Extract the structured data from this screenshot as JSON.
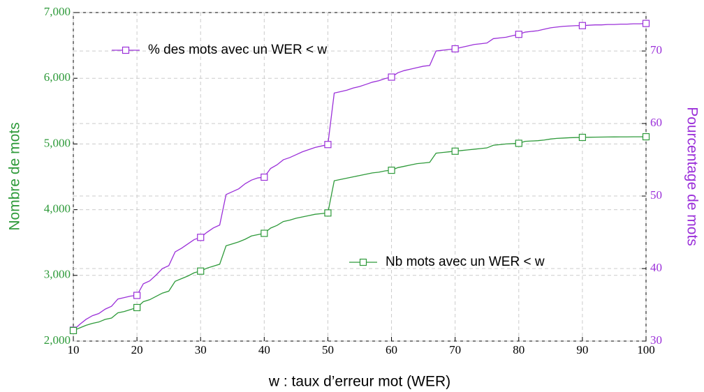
{
  "chart_data": {
    "type": "line",
    "xlabel": "w : taux d’erreur mot (WER)",
    "ylabel": "Nombre de mots",
    "y2label": "Pourcentage de mots",
    "x": [
      10,
      11,
      12,
      13,
      14,
      15,
      16,
      17,
      18,
      19,
      20,
      21,
      22,
      23,
      24,
      25,
      26,
      27,
      28,
      29,
      30,
      31,
      32,
      33,
      34,
      35,
      36,
      37,
      38,
      39,
      40,
      41,
      42,
      43,
      44,
      45,
      46,
      47,
      48,
      49,
      50,
      51,
      52,
      53,
      54,
      55,
      56,
      57,
      58,
      59,
      60,
      61,
      62,
      63,
      64,
      65,
      66,
      67,
      68,
      69,
      70,
      71,
      72,
      73,
      74,
      75,
      76,
      77,
      78,
      79,
      80,
      81,
      82,
      83,
      84,
      85,
      86,
      87,
      88,
      89,
      90,
      91,
      92,
      93,
      94,
      95,
      96,
      97,
      98,
      99,
      100
    ],
    "series": [
      {
        "name": "% des mots avec un WER < w",
        "color": "#9b30d9",
        "axis": "y2",
        "values": [
          31.5,
          32.3,
          33.0,
          33.5,
          33.8,
          34.4,
          34.8,
          35.8,
          36.0,
          36.2,
          36.3,
          37.9,
          38.3,
          39.1,
          40.0,
          40.4,
          42.3,
          42.8,
          43.4,
          44.0,
          44.3,
          45.0,
          45.6,
          46.0,
          50.2,
          50.6,
          51.0,
          51.7,
          52.2,
          52.5,
          52.6,
          53.8,
          54.3,
          55.0,
          55.3,
          55.7,
          56.1,
          56.4,
          56.7,
          56.9,
          57.1,
          64.2,
          64.4,
          64.6,
          64.9,
          65.1,
          65.4,
          65.7,
          65.9,
          66.2,
          66.4,
          67.0,
          67.3,
          67.5,
          67.7,
          67.9,
          68.0,
          70.0,
          70.1,
          70.2,
          70.3,
          70.5,
          70.7,
          70.9,
          71.0,
          71.1,
          71.7,
          71.8,
          71.9,
          72.1,
          72.3,
          72.6,
          72.7,
          72.8,
          73.0,
          73.2,
          73.3,
          73.4,
          73.45,
          73.5,
          73.5,
          73.55,
          73.6,
          73.6,
          73.65,
          73.65,
          73.7,
          73.7,
          73.75,
          73.75,
          73.8
        ]
      },
      {
        "name": "Nb mots avec un WER < w",
        "color": "#2e9a3a",
        "values": [
          2160,
          2200,
          2240,
          2270,
          2290,
          2330,
          2350,
          2430,
          2450,
          2480,
          2510,
          2600,
          2630,
          2680,
          2730,
          2760,
          2910,
          2950,
          2990,
          3040,
          3065,
          3110,
          3140,
          3170,
          3450,
          3480,
          3510,
          3550,
          3600,
          3620,
          3640,
          3720,
          3760,
          3820,
          3840,
          3870,
          3890,
          3910,
          3930,
          3940,
          3950,
          4440,
          4460,
          4480,
          4500,
          4520,
          4540,
          4560,
          4570,
          4590,
          4600,
          4640,
          4660,
          4680,
          4700,
          4710,
          4720,
          4860,
          4870,
          4880,
          4890,
          4900,
          4910,
          4920,
          4930,
          4940,
          4980,
          4990,
          5000,
          5005,
          5010,
          5040,
          5045,
          5050,
          5060,
          5075,
          5085,
          5090,
          5095,
          5098,
          5100,
          5102,
          5104,
          5105,
          5106,
          5107,
          5108,
          5108,
          5109,
          5109,
          5110
        ]
      }
    ],
    "xlim": [
      10,
      100
    ],
    "xticks": [
      10,
      20,
      30,
      40,
      50,
      60,
      70,
      80,
      90,
      100
    ],
    "ylim": [
      2000,
      7000
    ],
    "yticks": [
      {
        "value": 2000,
        "label": "2,000"
      },
      {
        "value": 3000,
        "label": "3,000"
      },
      {
        "value": 4000,
        "label": "4,000"
      },
      {
        "value": 5000,
        "label": "5,000"
      },
      {
        "value": 6000,
        "label": "6,000"
      },
      {
        "value": 7000,
        "label": "7,000"
      }
    ],
    "y2lim": [
      30,
      75.3
    ],
    "y2ticks": [
      30,
      40,
      50,
      60,
      70
    ],
    "grid": true
  }
}
